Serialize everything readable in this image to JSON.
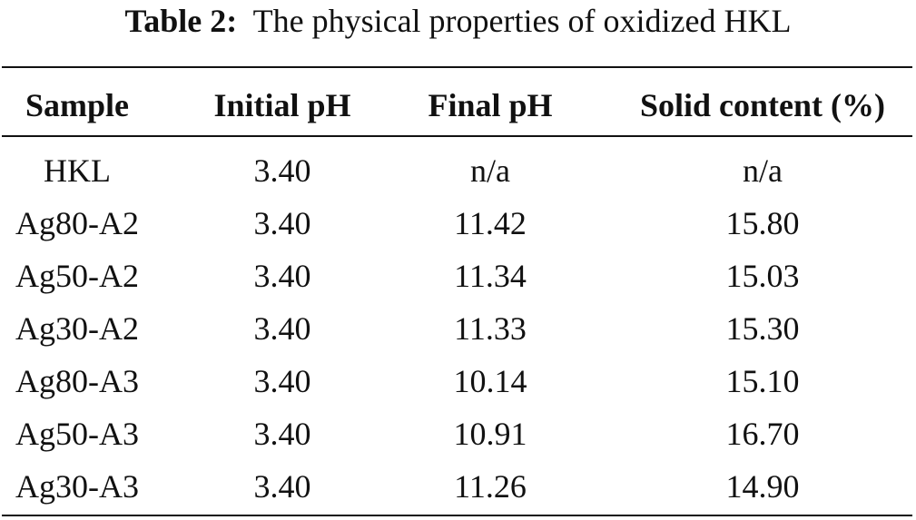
{
  "caption": {
    "label": "Table 2:",
    "text": "The physical properties of oxidized HKL"
  },
  "table": {
    "header": [
      "Sample",
      "Initial pH",
      "Final pH",
      "Solid content (%)"
    ],
    "rows": [
      [
        "HKL",
        "3.40",
        "n/a",
        "n/a"
      ],
      [
        "Ag80-A2",
        "3.40",
        "11.42",
        "15.80"
      ],
      [
        "Ag50-A2",
        "3.40",
        "11.34",
        "15.03"
      ],
      [
        "Ag30-A2",
        "3.40",
        "11.33",
        "15.30"
      ],
      [
        "Ag80-A3",
        "3.40",
        "10.14",
        "15.10"
      ],
      [
        "Ag50-A3",
        "3.40",
        "10.91",
        "16.70"
      ],
      [
        "Ag30-A3",
        "3.40",
        "11.26",
        "14.90"
      ]
    ]
  }
}
